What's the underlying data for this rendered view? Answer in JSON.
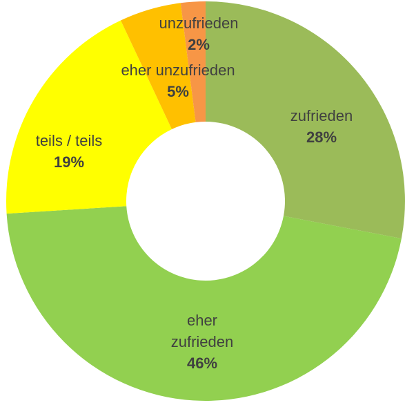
{
  "chart_data": {
    "type": "pie",
    "categories": [
      "zufrieden",
      "eher zufrieden",
      "teils / teils",
      "eher unzufrieden",
      "unzufrieden"
    ],
    "values": [
      28,
      46,
      19,
      5,
      2
    ],
    "value_labels": [
      "28%",
      "46%",
      "19%",
      "5%",
      "2%"
    ],
    "colors": [
      "#9bbb59",
      "#92d050",
      "#ffff00",
      "#ffc000",
      "#f79646"
    ]
  }
}
